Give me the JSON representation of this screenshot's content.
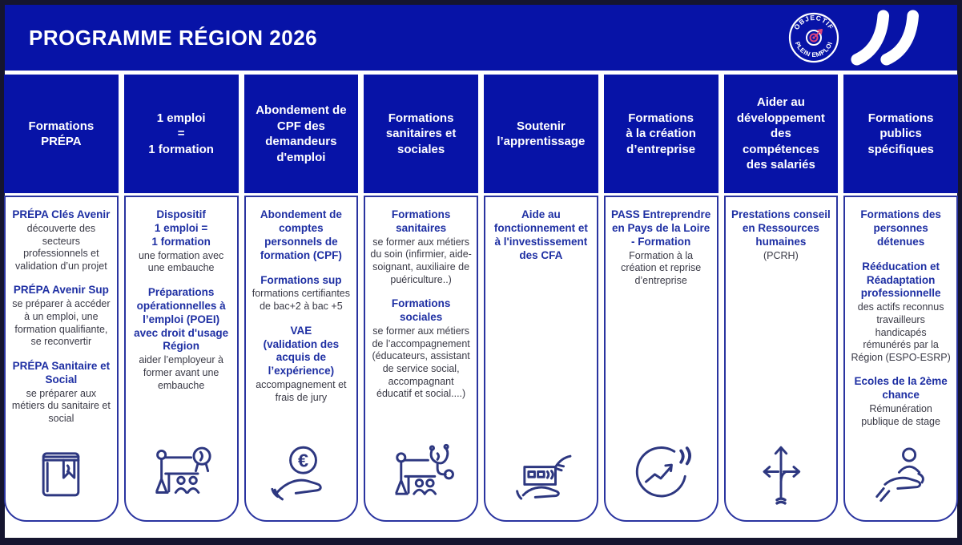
{
  "page": {
    "title": "PROGRAMME RÉGION 2026"
  },
  "logo": {
    "arc_top": "OBJECTIF",
    "arc_bottom": "PLEIN EMPLOI"
  },
  "colors": {
    "banner_blue": "#0713a7",
    "frame_dark": "#15152f",
    "border_navy": "#2a34a0",
    "heading_blue": "#1e2fa3",
    "text_dark": "#3a3a46",
    "icon_navy": "#2d3780",
    "dart_pink": "#e0457b"
  },
  "columns": [
    {
      "header": "Formations\nPRÉPA",
      "icon": "book-icon",
      "sections": [
        {
          "heading": "PRÉPA Clés Avenir",
          "body": "découverte des secteurs professionnels et validation d’un projet"
        },
        {
          "heading": "PRÉPA Avenir Sup",
          "body": "se préparer à accéder à un emploi, une formation qualifiante, se reconvertir"
        },
        {
          "heading": "PRÉPA Sanitaire et Social",
          "body": "se préparer aux métiers du sanitaire et social"
        }
      ]
    },
    {
      "header": "1 emploi\n=\n1 formation",
      "icon": "teacher-certificate-icon",
      "sections": [
        {
          "heading": "Dispositif\n1 emploi =\n1 formation",
          "body": "une formation avec une embauche"
        },
        {
          "heading": "Préparations opérationnelles  à l’emploi  (POEI) avec droit d'usage Région",
          "body": "aider l’employeur à former avant une embauche"
        }
      ]
    },
    {
      "header": "Abondement de\nCPF  des\ndemandeurs\nd'emploi",
      "icon": "hand-euro-icon",
      "sections": [
        {
          "heading": "Abondement de comptes personnels de formation (CPF)",
          "body": ""
        },
        {
          "heading": "Formations sup",
          "body": "formations certifiantes de bac+2 à bac +5"
        },
        {
          "heading": "VAE\n(validation des acquis de l’expérience)",
          "body": "accompagnement et frais de jury"
        }
      ]
    },
    {
      "header": "Formations\nsanitaires et\nsociales",
      "icon": "teacher-stethoscope-icon",
      "sections": [
        {
          "heading": "Formations sanitaires",
          "body": "se former aux métiers du soin (infirmier, aide-soignant, auxiliaire de puériculture..)"
        },
        {
          "heading": "Formations sociales",
          "body": "se former aux métiers de l’accompagnement (éducateurs, assistant de service social, accompagnant éducatif et social....)"
        }
      ]
    },
    {
      "header": "Soutenir\nl’apprentissage",
      "icon": "hand-building-icon",
      "sections": [
        {
          "heading": "Aide au fonctionnement et à l'investissement des CFA",
          "body": ""
        }
      ]
    },
    {
      "header": "Formations\nà la création\nd’entreprise",
      "icon": "growth-circle-icon",
      "sections": [
        {
          "heading": "PASS Entreprendre en Pays de la Loire - Formation",
          "body": "Formation à la création et reprise d’entreprise"
        }
      ]
    },
    {
      "header": "Aider au\ndéveloppement\ndes\ncompétences\ndes salariés",
      "icon": "arrows-directions-icon",
      "sections": [
        {
          "heading": "Prestations conseil en Ressources humaines",
          "body": "(PCRH)"
        }
      ]
    },
    {
      "header": "Formations\npublics\nspécifiques",
      "icon": "hand-person-icon",
      "sections": [
        {
          "heading": "Formations des personnes détenues",
          "body": ""
        },
        {
          "heading": "Rééducation et Réadaptation professionnelle",
          "body": "des actifs reconnus travailleurs handicapés rémunérés par la Région (ESPO-ESRP)"
        },
        {
          "heading": "Ecoles de la 2ème chance",
          "body": "Rémunération publique de stage"
        }
      ]
    }
  ]
}
